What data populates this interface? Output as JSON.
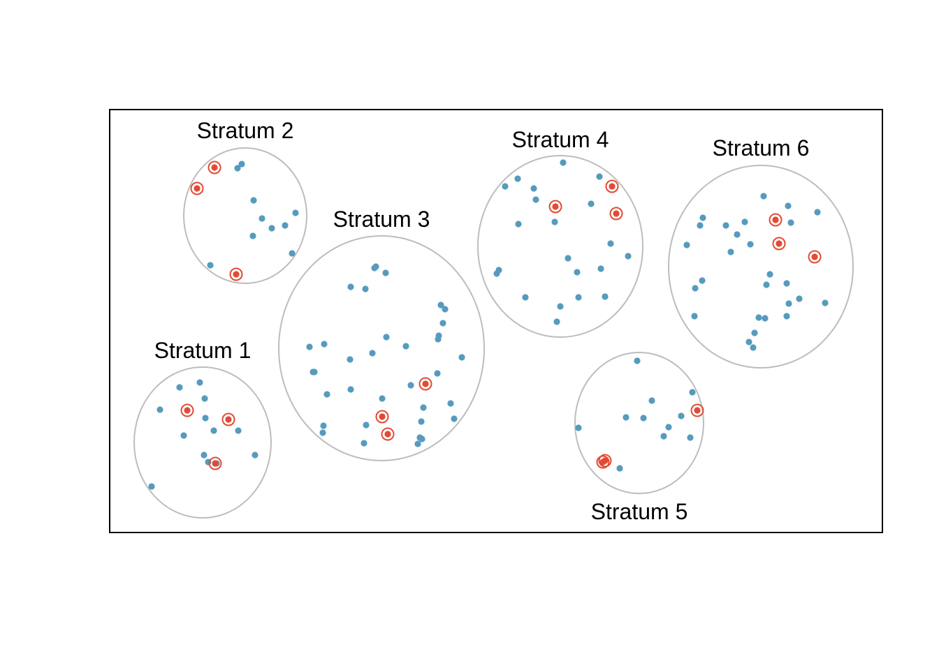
{
  "colors": {
    "population_point": "#569bbd",
    "sampled_point": "#e24a33",
    "stratum_boundary": "#bdbdbd",
    "frame": "#000000"
  },
  "strata": [
    {
      "label": "Stratum 1"
    },
    {
      "label": "Stratum 2"
    },
    {
      "label": "Stratum 3"
    },
    {
      "label": "Stratum 4"
    },
    {
      "label": "Stratum 5"
    },
    {
      "label": "Stratum 6"
    }
  ]
}
